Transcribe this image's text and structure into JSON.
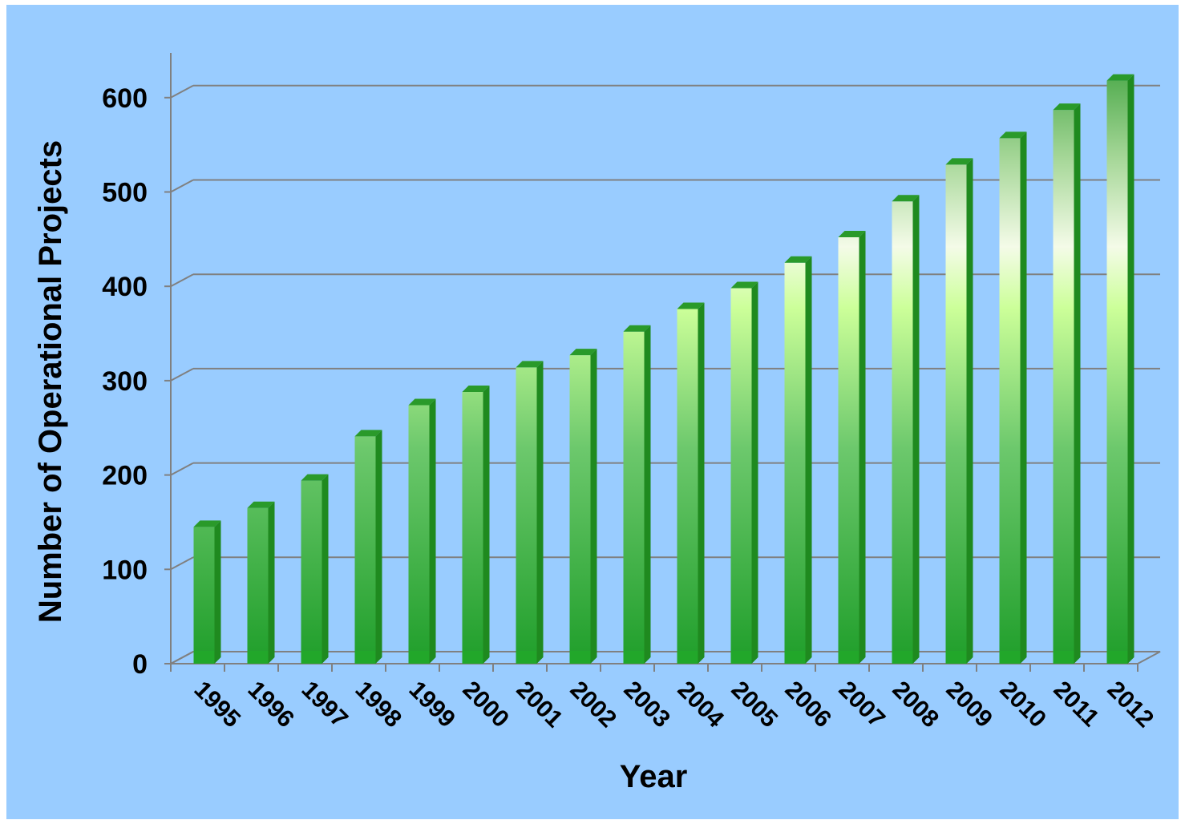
{
  "chart_data": {
    "type": "bar",
    "title": "",
    "xlabel": "Year",
    "ylabel": "Number of Operational Projects",
    "categories": [
      "1995",
      "1996",
      "1997",
      "1998",
      "1999",
      "2000",
      "2001",
      "2002",
      "2003",
      "2004",
      "2005",
      "2006",
      "2007",
      "2008",
      "2009",
      "2010",
      "2011",
      "2012"
    ],
    "values": [
      145,
      165,
      194,
      241,
      274,
      288,
      314,
      327,
      352,
      376,
      398,
      425,
      452,
      490,
      529,
      557,
      587,
      618
    ],
    "yticks": [
      "0",
      "100",
      "200",
      "300",
      "400",
      "500",
      "600"
    ],
    "ylim": [
      0,
      650
    ],
    "grid": true,
    "legend": "none",
    "colors": {
      "background": "#99ccff",
      "bar_dark": "#2ea52e",
      "bar_light": "#ccff99",
      "bar_highlight": "#ffffff",
      "gridline": "#808080"
    }
  }
}
